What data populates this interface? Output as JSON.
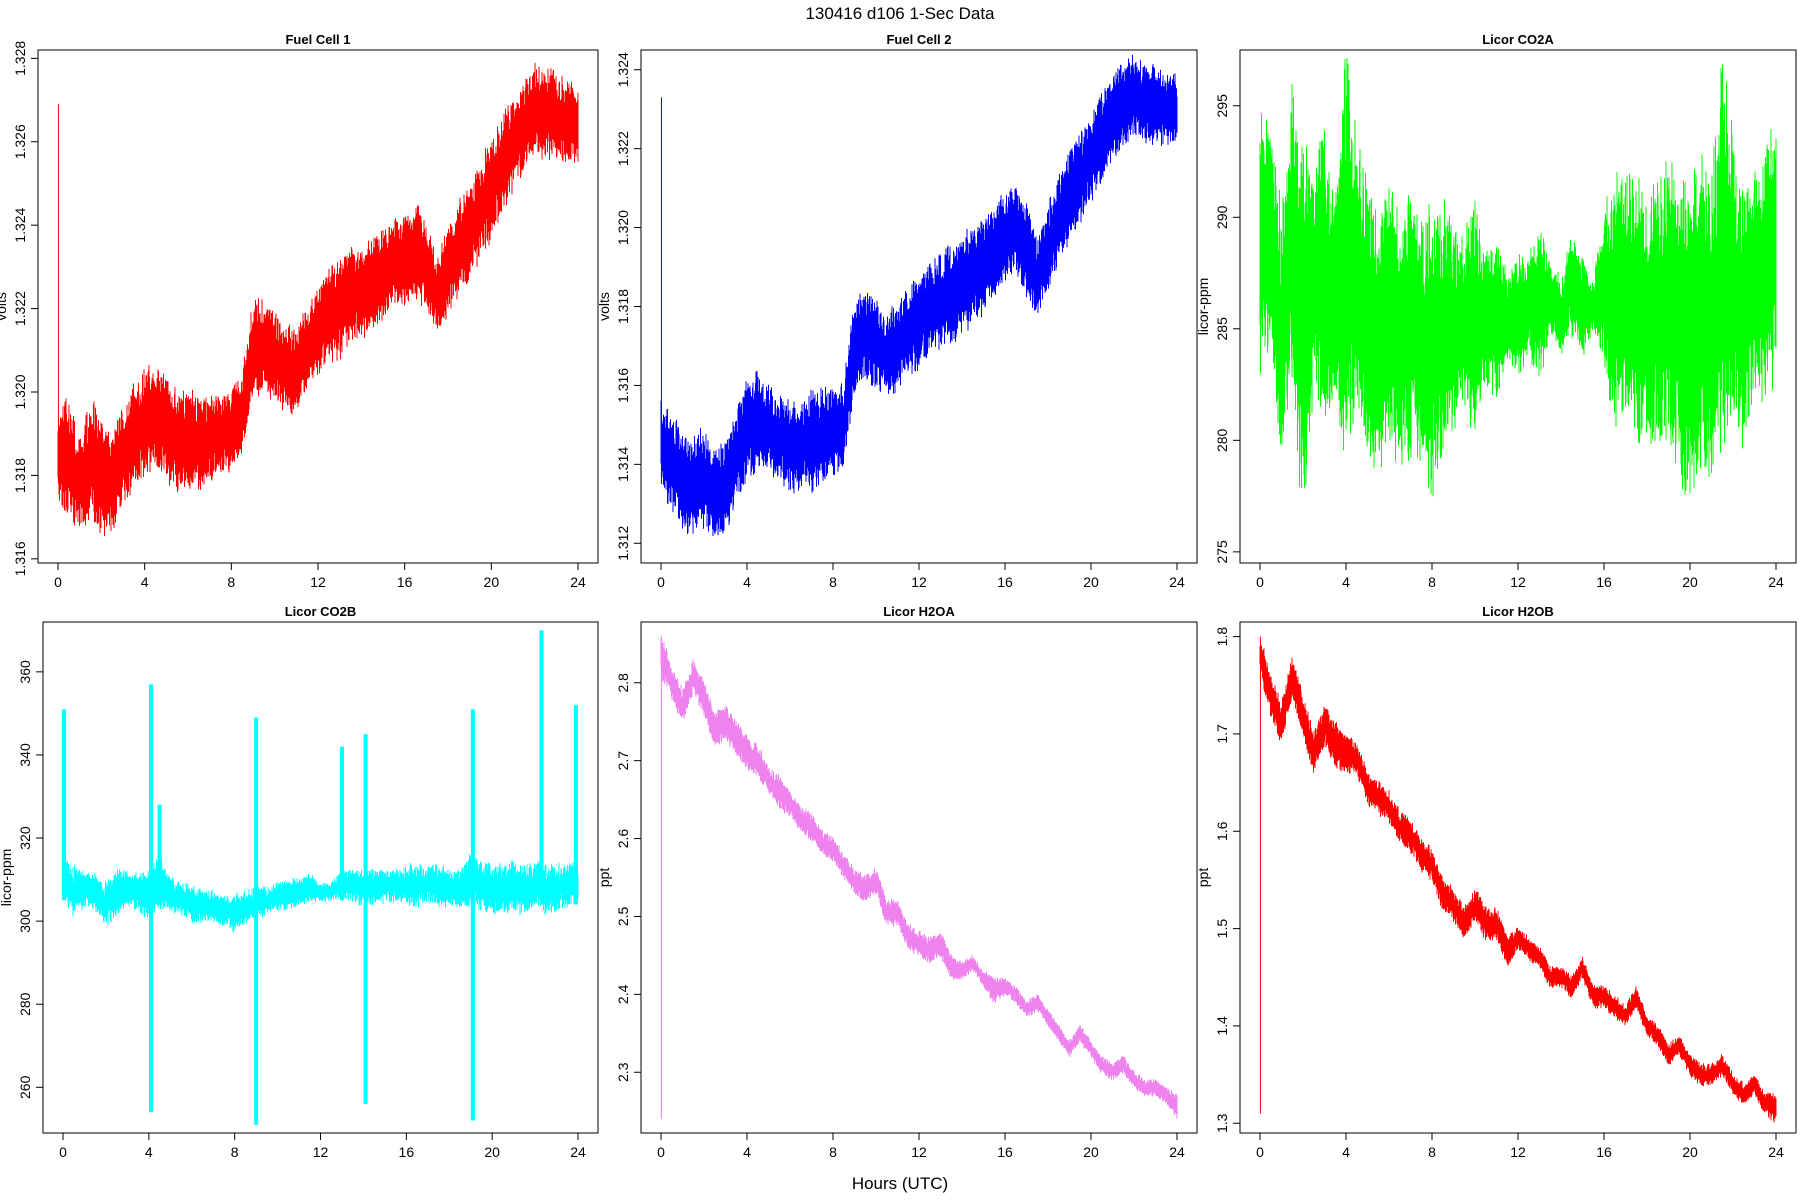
{
  "figure": {
    "title": "130416   d106   1-Sec Data",
    "xlabel": "Hours (UTC)"
  },
  "chart_data": [
    {
      "type": "line",
      "title": "Fuel Cell 1",
      "ylabel": "volts",
      "color": "#ff0000",
      "xlim": [
        0,
        24
      ],
      "xticks": [
        0,
        4,
        8,
        12,
        16,
        20,
        24
      ],
      "ylim": [
        1.3159,
        1.3282
      ],
      "yticks": [
        1.316,
        1.318,
        1.32,
        1.322,
        1.324,
        1.326,
        1.328
      ],
      "yticklabels": [
        "1.316",
        "1.318",
        "1.320",
        "1.322",
        "1.324",
        "1.326",
        "1.328"
      ],
      "spike": {
        "x": 0.02,
        "low": 1.3178,
        "high": 1.3269
      },
      "x": [
        0,
        0.5,
        1,
        1.5,
        2,
        2.5,
        3,
        3.5,
        4,
        4.5,
        5,
        5.5,
        6,
        6.5,
        7,
        7.5,
        8,
        8.5,
        9,
        9.5,
        10,
        10.5,
        11,
        11.5,
        12,
        12.5,
        13,
        13.5,
        14,
        14.5,
        15,
        15.5,
        16,
        16.5,
        17,
        17.5,
        18,
        18.5,
        19,
        19.5,
        20,
        20.5,
        21,
        21.5,
        22,
        22.5,
        23,
        23.5,
        24
      ],
      "low": [
        1.3175,
        1.3172,
        1.3167,
        1.3172,
        1.3167,
        1.3168,
        1.3174,
        1.3178,
        1.3182,
        1.3183,
        1.318,
        1.3177,
        1.3178,
        1.3178,
        1.3179,
        1.3181,
        1.3183,
        1.3187,
        1.32,
        1.3201,
        1.3199,
        1.3197,
        1.3195,
        1.3202,
        1.3205,
        1.3208,
        1.321,
        1.3213,
        1.3214,
        1.3216,
        1.3218,
        1.322,
        1.3222,
        1.3224,
        1.3221,
        1.3214,
        1.322,
        1.3225,
        1.3228,
        1.3234,
        1.3238,
        1.3244,
        1.325,
        1.3254,
        1.3258,
        1.3258,
        1.3256,
        1.3256,
        1.3256
      ],
      "high": [
        1.3195,
        1.3197,
        1.3187,
        1.3198,
        1.3191,
        1.3188,
        1.3195,
        1.32,
        1.3204,
        1.3205,
        1.3202,
        1.3199,
        1.3199,
        1.3198,
        1.3197,
        1.3198,
        1.32,
        1.3204,
        1.322,
        1.3221,
        1.3218,
        1.3215,
        1.3214,
        1.322,
        1.3224,
        1.3228,
        1.3231,
        1.3233,
        1.3234,
        1.3236,
        1.3238,
        1.324,
        1.3242,
        1.3244,
        1.3239,
        1.3231,
        1.3238,
        1.3245,
        1.3249,
        1.3254,
        1.3259,
        1.3265,
        1.3269,
        1.3273,
        1.3277,
        1.3277,
        1.3275,
        1.3273,
        1.3273
      ]
    },
    {
      "type": "line",
      "title": "Fuel Cell 2",
      "ylabel": "volts",
      "color": "#0000ff",
      "xlim": [
        0,
        24
      ],
      "xticks": [
        0,
        4,
        8,
        12,
        16,
        20,
        24
      ],
      "ylim": [
        1.3115,
        1.3245
      ],
      "yticks": [
        1.312,
        1.314,
        1.316,
        1.318,
        1.32,
        1.322,
        1.324
      ],
      "yticklabels": [
        "1.312",
        "1.314",
        "1.316",
        "1.318",
        "1.320",
        "1.322",
        "1.324"
      ],
      "spike": {
        "x": 0.02,
        "low": 1.3135,
        "high": 1.3233
      },
      "x": [
        0,
        0.5,
        1,
        1.5,
        2,
        2.5,
        3,
        3.5,
        4,
        4.5,
        5,
        5.5,
        6,
        6.5,
        7,
        7.5,
        8,
        8.5,
        9,
        9.5,
        10,
        10.5,
        11,
        11.5,
        12,
        12.5,
        13,
        13.5,
        14,
        14.5,
        15,
        15.5,
        16,
        16.5,
        17,
        17.5,
        18,
        18.5,
        19,
        19.5,
        20,
        20.5,
        21,
        21.5,
        22,
        22.5,
        23,
        23.5,
        24
      ],
      "low": [
        1.3135,
        1.313,
        1.3125,
        1.3122,
        1.3126,
        1.3122,
        1.3124,
        1.3131,
        1.3138,
        1.314,
        1.3139,
        1.3136,
        1.3135,
        1.3134,
        1.3135,
        1.3136,
        1.3138,
        1.314,
        1.316,
        1.3162,
        1.316,
        1.3159,
        1.316,
        1.3164,
        1.3166,
        1.3169,
        1.3171,
        1.3172,
        1.3174,
        1.3177,
        1.3179,
        1.3184,
        1.3188,
        1.319,
        1.3184,
        1.3178,
        1.3185,
        1.3193,
        1.3198,
        1.3202,
        1.3208,
        1.3212,
        1.3218,
        1.3222,
        1.3224,
        1.3223,
        1.3222,
        1.3222,
        1.3222
      ],
      "high": [
        1.3155,
        1.3152,
        1.3147,
        1.3146,
        1.3148,
        1.3142,
        1.3145,
        1.3152,
        1.316,
        1.3162,
        1.3159,
        1.3156,
        1.3155,
        1.3155,
        1.3157,
        1.3158,
        1.3158,
        1.316,
        1.318,
        1.3183,
        1.318,
        1.3177,
        1.318,
        1.3185,
        1.3188,
        1.319,
        1.3192,
        1.3194,
        1.3196,
        1.3199,
        1.3201,
        1.3204,
        1.3208,
        1.321,
        1.3204,
        1.3196,
        1.3205,
        1.3212,
        1.3218,
        1.3222,
        1.3228,
        1.3233,
        1.3237,
        1.3242,
        1.3243,
        1.3241,
        1.324,
        1.3239,
        1.3238
      ]
    },
    {
      "type": "line",
      "title": "Licor CO2A",
      "ylabel": "licor-ppm",
      "color": "#00ff00",
      "xlim": [
        0,
        24
      ],
      "xticks": [
        0,
        4,
        8,
        12,
        16,
        20,
        24
      ],
      "ylim": [
        274.5,
        297.5
      ],
      "yticks": [
        275,
        280,
        285,
        290,
        295
      ],
      "yticklabels": [
        "275",
        "280",
        "285",
        "290",
        "295"
      ],
      "x": [
        0,
        0.5,
        1,
        1.5,
        2,
        2.5,
        3,
        3.5,
        4,
        4.5,
        5,
        5.5,
        6,
        6.5,
        7,
        7.5,
        8,
        8.5,
        9,
        9.5,
        10,
        10.5,
        11,
        11.5,
        12,
        12.5,
        13,
        13.5,
        14,
        14.5,
        15,
        15.5,
        16,
        16.5,
        17,
        17.5,
        18,
        18.5,
        19,
        19.5,
        20,
        20.5,
        21,
        21.5,
        22,
        22.5,
        23,
        23.5,
        24
      ],
      "low": [
        283,
        285,
        279,
        284,
        277,
        283,
        281,
        282,
        280,
        282,
        280,
        279,
        281,
        279,
        280,
        279,
        278,
        280,
        281,
        282,
        281,
        283,
        282,
        284,
        283,
        284,
        283,
        285,
        284,
        285,
        284,
        285,
        284,
        281,
        282,
        281,
        281,
        280,
        281,
        279,
        278,
        280,
        279,
        281,
        282,
        280,
        283,
        282,
        284
      ],
      "high": [
        295,
        293,
        290,
        295,
        292,
        292,
        293,
        290,
        297,
        293,
        291,
        289,
        291,
        289,
        291,
        289,
        290,
        290,
        289,
        289,
        290,
        288,
        289,
        287,
        288,
        288,
        289,
        288,
        287,
        289,
        288,
        287,
        290,
        291,
        291,
        292,
        290,
        291,
        292,
        291,
        290,
        292,
        291,
        296,
        293,
        290,
        292,
        293,
        293
      ]
    },
    {
      "type": "line",
      "title": "Licor CO2B",
      "ylabel": "licor-ppm",
      "color": "#00ffff",
      "xlim": [
        0,
        24
      ],
      "xticks": [
        0,
        4,
        8,
        12,
        16,
        20,
        24
      ],
      "ylim": [
        249,
        372
      ],
      "yticks": [
        260,
        280,
        300,
        320,
        340,
        360
      ],
      "yticklabels": [
        "260",
        "280",
        "300",
        "320",
        "340",
        "360"
      ],
      "x": [
        0,
        0.5,
        1,
        1.5,
        2,
        2.5,
        3,
        3.5,
        4,
        4.5,
        5,
        5.5,
        6,
        6.5,
        7,
        7.5,
        8,
        8.5,
        9,
        9.5,
        10,
        10.5,
        11,
        11.5,
        12,
        12.5,
        13,
        13.5,
        14,
        14.5,
        15,
        15.5,
        16,
        16.5,
        17,
        17.5,
        18,
        18.5,
        19,
        19.5,
        20,
        20.5,
        21,
        21.5,
        22,
        22.5,
        23,
        23.5,
        24
      ],
      "low": [
        306,
        302,
        304,
        303,
        299,
        302,
        304,
        303,
        301,
        304,
        302,
        302,
        300,
        300,
        300,
        299,
        298,
        300,
        301,
        302,
        303,
        303,
        304,
        305,
        305,
        305,
        306,
        305,
        304,
        304,
        305,
        305,
        304,
        304,
        305,
        304,
        303,
        304,
        304,
        303,
        302,
        302,
        303,
        302,
        304,
        302,
        303,
        304,
        304
      ],
      "high": [
        316,
        313,
        312,
        311,
        309,
        312,
        312,
        311,
        312,
        316,
        310,
        309,
        308,
        307,
        307,
        306,
        306,
        307,
        308,
        308,
        309,
        310,
        310,
        311,
        309,
        309,
        312,
        312,
        312,
        312,
        312,
        312,
        313,
        313,
        313,
        313,
        312,
        312,
        316,
        314,
        313,
        313,
        314,
        313,
        314,
        313,
        313,
        314,
        314
      ],
      "spikes": [
        {
          "x": 0.05,
          "low": 305,
          "high": 351
        },
        {
          "x": 4.1,
          "low": 254,
          "high": 357
        },
        {
          "x": 4.5,
          "low": 304,
          "high": 328
        },
        {
          "x": 9.0,
          "low": 251,
          "high": 349
        },
        {
          "x": 13.0,
          "low": 305,
          "high": 342
        },
        {
          "x": 14.1,
          "low": 256,
          "high": 345
        },
        {
          "x": 19.1,
          "low": 252,
          "high": 351
        },
        {
          "x": 22.3,
          "low": 304,
          "high": 370
        },
        {
          "x": 23.9,
          "low": 304,
          "high": 352
        }
      ]
    },
    {
      "type": "line",
      "title": "Licor H2OA",
      "ylabel": "ppt",
      "color": "#ee82ee",
      "xlim": [
        0,
        24
      ],
      "xticks": [
        0,
        4,
        8,
        12,
        16,
        20,
        24
      ],
      "ylim": [
        2.222,
        2.878
      ],
      "yticks": [
        2.3,
        2.4,
        2.5,
        2.6,
        2.7,
        2.8
      ],
      "yticklabels": [
        "2.3",
        "2.4",
        "2.5",
        "2.6",
        "2.7",
        "2.8"
      ],
      "spike": {
        "x": 0.02,
        "low": 2.24,
        "high": 2.86
      },
      "x": [
        0,
        0.5,
        1,
        1.5,
        2,
        2.5,
        3,
        3.5,
        4,
        4.5,
        5,
        5.5,
        6,
        6.5,
        7,
        7.5,
        8,
        8.5,
        9,
        9.5,
        10,
        10.5,
        11,
        11.5,
        12,
        12.5,
        13,
        13.5,
        14,
        14.5,
        15,
        15.5,
        16,
        16.5,
        17,
        17.5,
        18,
        18.5,
        19,
        19.5,
        20,
        20.5,
        21,
        21.5,
        22,
        22.5,
        23,
        23.5,
        24
      ],
      "low": [
        2.81,
        2.78,
        2.75,
        2.79,
        2.76,
        2.72,
        2.73,
        2.71,
        2.69,
        2.68,
        2.66,
        2.64,
        2.63,
        2.61,
        2.6,
        2.58,
        2.57,
        2.55,
        2.53,
        2.52,
        2.53,
        2.49,
        2.49,
        2.46,
        2.45,
        2.44,
        2.45,
        2.42,
        2.42,
        2.43,
        2.41,
        2.39,
        2.4,
        2.39,
        2.37,
        2.38,
        2.36,
        2.34,
        2.32,
        2.34,
        2.32,
        2.3,
        2.29,
        2.3,
        2.28,
        2.27,
        2.27,
        2.26,
        2.24
      ],
      "high": [
        2.86,
        2.82,
        2.79,
        2.83,
        2.8,
        2.76,
        2.77,
        2.75,
        2.73,
        2.72,
        2.69,
        2.68,
        2.66,
        2.64,
        2.63,
        2.61,
        2.6,
        2.58,
        2.56,
        2.55,
        2.56,
        2.52,
        2.52,
        2.49,
        2.48,
        2.47,
        2.48,
        2.45,
        2.44,
        2.45,
        2.43,
        2.42,
        2.42,
        2.41,
        2.39,
        2.4,
        2.38,
        2.36,
        2.34,
        2.36,
        2.34,
        2.32,
        2.31,
        2.32,
        2.3,
        2.29,
        2.29,
        2.28,
        2.27
      ]
    },
    {
      "type": "line",
      "title": "Licor H2OB",
      "ylabel": "ppt",
      "color": "#ff0000",
      "xlim": [
        0,
        24
      ],
      "xticks": [
        0,
        4,
        8,
        12,
        16,
        20,
        24
      ],
      "ylim": [
        1.29,
        1.815
      ],
      "yticks": [
        1.3,
        1.4,
        1.5,
        1.6,
        1.7,
        1.8
      ],
      "yticklabels": [
        "1.3",
        "1.4",
        "1.5",
        "1.6",
        "1.7",
        "1.8"
      ],
      "spike": {
        "x": 0.02,
        "low": 1.31,
        "high": 1.8
      },
      "x": [
        0,
        0.5,
        1,
        1.5,
        2,
        2.5,
        3,
        3.5,
        4,
        4.5,
        5,
        5.5,
        6,
        6.5,
        7,
        7.5,
        8,
        8.5,
        9,
        9.5,
        10,
        10.5,
        11,
        11.5,
        12,
        12.5,
        13,
        13.5,
        14,
        14.5,
        15,
        15.5,
        16,
        16.5,
        17,
        17.5,
        18,
        18.5,
        19,
        19.5,
        20,
        20.5,
        21,
        21.5,
        22,
        22.5,
        23,
        23.5,
        24
      ],
      "low": [
        1.76,
        1.72,
        1.69,
        1.74,
        1.7,
        1.66,
        1.69,
        1.67,
        1.66,
        1.66,
        1.63,
        1.62,
        1.61,
        1.59,
        1.58,
        1.56,
        1.55,
        1.52,
        1.51,
        1.49,
        1.51,
        1.49,
        1.49,
        1.46,
        1.48,
        1.47,
        1.46,
        1.44,
        1.44,
        1.43,
        1.45,
        1.42,
        1.42,
        1.41,
        1.4,
        1.42,
        1.39,
        1.38,
        1.36,
        1.37,
        1.35,
        1.34,
        1.34,
        1.35,
        1.33,
        1.32,
        1.33,
        1.31,
        1.3
      ],
      "high": [
        1.8,
        1.76,
        1.73,
        1.78,
        1.74,
        1.7,
        1.73,
        1.71,
        1.7,
        1.69,
        1.66,
        1.65,
        1.64,
        1.62,
        1.61,
        1.59,
        1.58,
        1.55,
        1.54,
        1.52,
        1.54,
        1.52,
        1.52,
        1.49,
        1.5,
        1.49,
        1.48,
        1.46,
        1.46,
        1.45,
        1.47,
        1.44,
        1.44,
        1.43,
        1.42,
        1.44,
        1.41,
        1.4,
        1.38,
        1.39,
        1.37,
        1.36,
        1.36,
        1.37,
        1.35,
        1.34,
        1.35,
        1.33,
        1.33
      ]
    }
  ]
}
